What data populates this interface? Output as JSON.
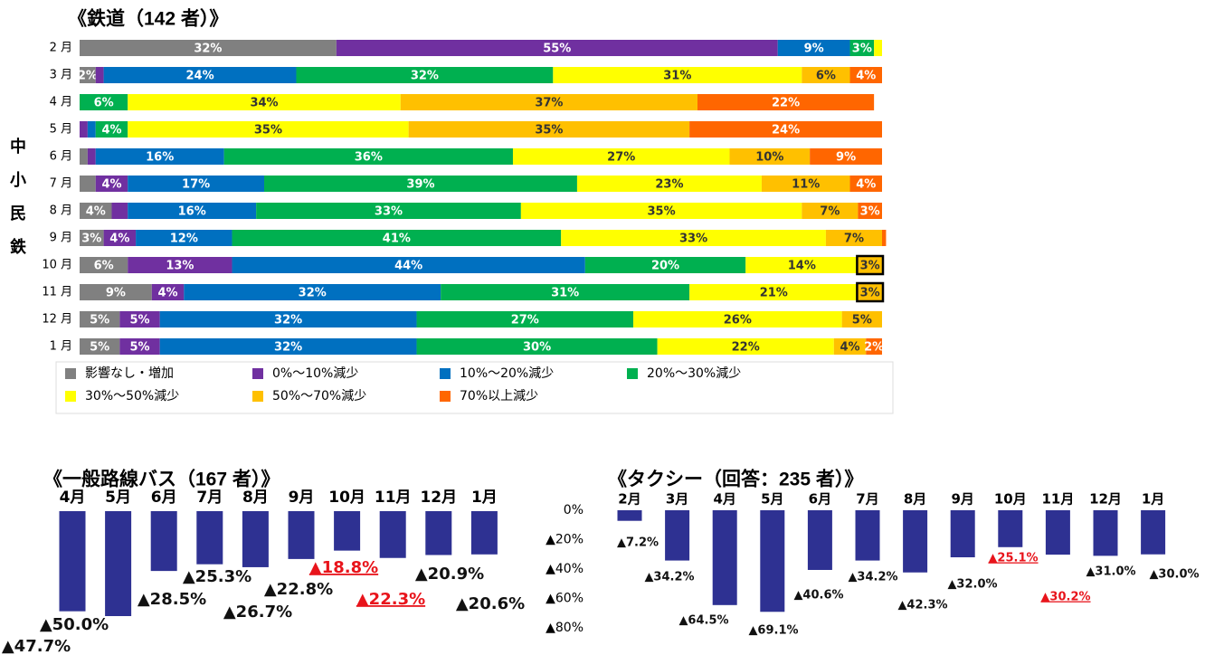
{
  "chart_data": [
    {
      "type": "bar",
      "orientation": "horizontal",
      "stacked": true,
      "title": "《鉄道（142 者）》",
      "group_label": "中小民鉄",
      "categories": [
        "2 月",
        "3 月",
        "4 月",
        "5 月",
        "6 月",
        "7 月",
        "8 月",
        "9 月",
        "10 月",
        "11 月",
        "12 月",
        "1 月"
      ],
      "xlim": [
        0,
        100
      ],
      "series": [
        {
          "name": "影響なし・増加",
          "color": "#808080",
          "values": [
            32,
            2,
            0,
            0,
            1,
            2,
            4,
            3,
            6,
            9,
            5,
            5
          ],
          "value_labels": [
            "32%",
            "2%",
            null,
            null,
            null,
            null,
            "4%",
            "3%",
            "6%",
            "9%",
            "5%",
            "5%"
          ]
        },
        {
          "name": "0%～10%減少",
          "color": "#7030a0",
          "values": [
            55,
            1,
            0,
            1,
            1,
            4,
            2,
            4,
            13,
            4,
            5,
            5
          ],
          "value_labels": [
            "55%",
            null,
            null,
            null,
            null,
            "4%",
            null,
            "4%",
            "13%",
            "4%",
            "5%",
            "5%"
          ]
        },
        {
          "name": "10%～20%減少",
          "color": "#0070c0",
          "values": [
            9,
            24,
            0,
            1,
            16,
            17,
            16,
            12,
            44,
            32,
            32,
            32
          ],
          "value_labels": [
            "9%",
            "24%",
            null,
            null,
            "16%",
            "17%",
            "16%",
            "12%",
            "44%",
            "32%",
            "32%",
            "32%"
          ]
        },
        {
          "name": "20%～30%減少",
          "color": "#00b050",
          "values": [
            3,
            32,
            6,
            4,
            36,
            39,
            33,
            41,
            20,
            31,
            27,
            30
          ],
          "value_labels": [
            "3%",
            "32%",
            "6%",
            "4%",
            "36%",
            "39%",
            "33%",
            "41%",
            "20%",
            "31%",
            "27%",
            "30%"
          ]
        },
        {
          "name": "30%～50%減少",
          "color": "#ffff00",
          "values": [
            1,
            31,
            34,
            35,
            27,
            23,
            35,
            33,
            14,
            21,
            26,
            22
          ],
          "value_labels": [
            null,
            "31%",
            "34%",
            "35%",
            "27%",
            "23%",
            "35%",
            "33%",
            "14%",
            "21%",
            "26%",
            "22%"
          ]
        },
        {
          "name": "50%～70%減少",
          "color": "#ffc000",
          "values": [
            0,
            6,
            37,
            35,
            10,
            11,
            7,
            7,
            3,
            3,
            5,
            4
          ],
          "value_labels": [
            null,
            "6%",
            "37%",
            "35%",
            "10%",
            "11%",
            "7%",
            "7%",
            "3%",
            "3%",
            "5%",
            "4%"
          ]
        },
        {
          "name": "70%以上減少",
          "color": "#ff6600",
          "values": [
            0,
            4,
            22,
            24,
            9,
            4,
            3,
            0.5,
            0,
            0,
            0,
            2
          ],
          "value_labels": [
            null,
            "4%",
            "22%",
            "24%",
            "9%",
            "4%",
            "3%",
            null,
            null,
            null,
            null,
            "2%"
          ]
        }
      ]
    },
    {
      "type": "bar",
      "title": "《一般路線バス（167 者）》",
      "categories": [
        "4月",
        "5月",
        "6月",
        "7月",
        "8月",
        "9月",
        "10月",
        "11月",
        "12月",
        "1月"
      ],
      "values": [
        -47.7,
        -50.0,
        -28.5,
        -25.3,
        -26.7,
        -22.8,
        -18.8,
        -22.3,
        -20.9,
        -20.6
      ],
      "value_labels": [
        "▲47.7%",
        "▲50.0%",
        "▲28.5%",
        "▲25.3%",
        "▲26.7%",
        "▲22.8%",
        "▲18.8%",
        "▲22.3%",
        "▲20.9%",
        "▲20.6%"
      ],
      "color": "#2e3192",
      "ylim": [
        -50,
        0
      ]
    },
    {
      "type": "bar",
      "title": "《タクシー（回答：235 者）》",
      "categories": [
        "2月",
        "3月",
        "4月",
        "5月",
        "6月",
        "7月",
        "8月",
        "9月",
        "10月",
        "11月",
        "12月",
        "1月"
      ],
      "values": [
        -7.2,
        -34.2,
        -64.5,
        -69.1,
        -40.6,
        -34.2,
        -42.3,
        -32.0,
        -25.1,
        -30.2,
        -31.0,
        -30.0
      ],
      "value_labels": [
        "▲7.2%",
        "▲34.2%",
        "▲64.5%",
        "▲69.1%",
        "▲40.6%",
        "▲34.2%",
        "▲42.3%",
        "▲32.0%",
        "▲25.1%",
        "▲30.2%",
        "▲31.0%",
        "▲30.0%"
      ],
      "color": "#2e3192",
      "ylim": [
        -80,
        0
      ],
      "yticks": [
        {
          "value": 0,
          "label": "0%"
        },
        {
          "value": -20,
          "label": "▲20%"
        },
        {
          "value": -40,
          "label": "▲40%"
        },
        {
          "value": -60,
          "label": "▲60%"
        },
        {
          "value": -80,
          "label": "▲80%"
        }
      ]
    }
  ]
}
